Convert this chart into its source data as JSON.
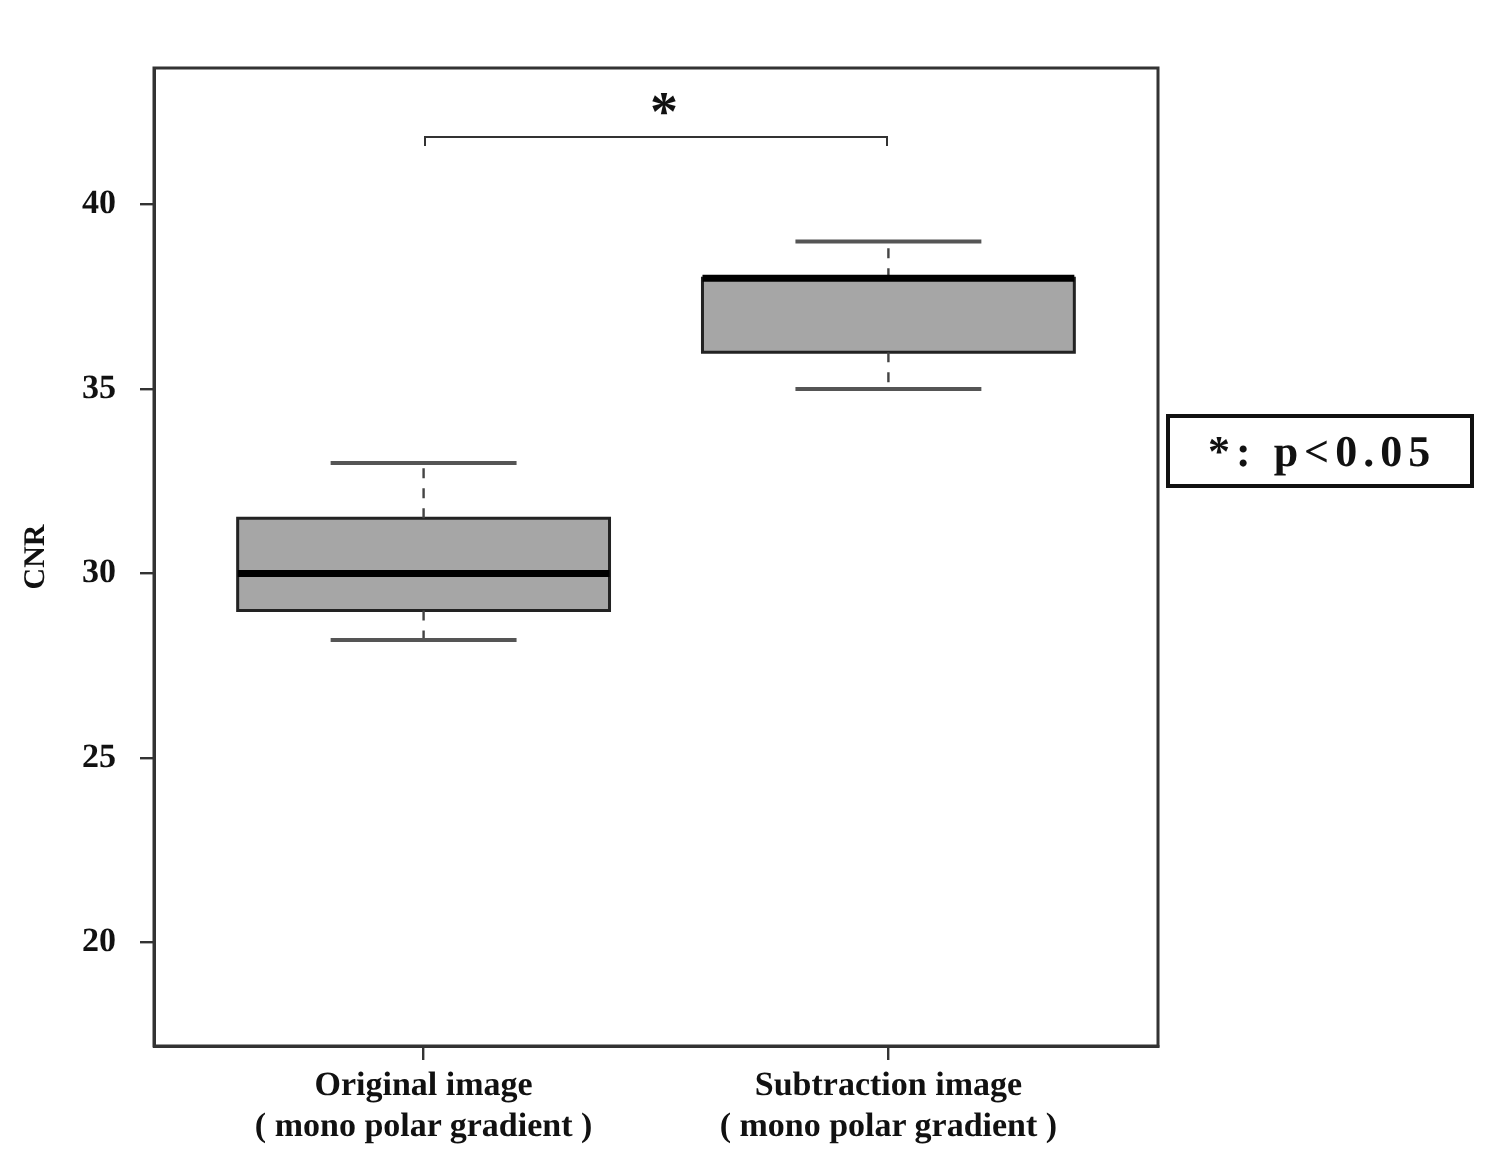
{
  "chart_data": {
    "type": "box",
    "ylabel": "CNR",
    "categories": [
      "Original image\n( mono polar gradient )",
      "Subtraction image\n( mono polar gradient )"
    ],
    "color": "#a6a6a6",
    "boxes": [
      {
        "low": 28.2,
        "q1": 29,
        "median": 30,
        "q3": 31.5,
        "high": 33
      },
      {
        "low": 35,
        "q1": 36,
        "median": 38,
        "q3": 38,
        "high": 39
      }
    ],
    "ylim": [
      17.2,
      43.7
    ],
    "yticks": [
      20,
      25,
      30,
      35,
      40
    ],
    "grid": false,
    "legend": false,
    "annotations": [
      "*",
      "*: p<0.05"
    ]
  }
}
